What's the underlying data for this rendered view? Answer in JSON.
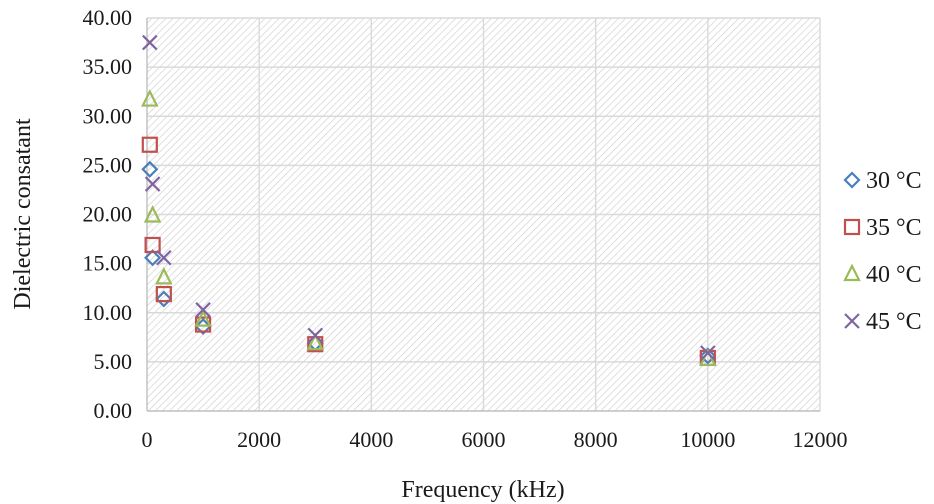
{
  "chart_data": {
    "type": "scatter",
    "xlabel": "Frequency (kHz)",
    "ylabel": "Dielectric consatant",
    "xlim": [
      0,
      12000
    ],
    "ylim": [
      0,
      40
    ],
    "xticks": [
      0,
      2000,
      4000,
      6000,
      8000,
      10000,
      12000
    ],
    "xtick_labels": [
      "0",
      "2000",
      "4000",
      "6000",
      "8000",
      "10000",
      "12000"
    ],
    "yticks": [
      0,
      5,
      10,
      15,
      20,
      25,
      30,
      35,
      40
    ],
    "ytick_labels": [
      "0.00",
      "5.00",
      "10.00",
      "15.00",
      "20.00",
      "25.00",
      "30.00",
      "35.00",
      "40.00"
    ],
    "grid": true,
    "plot_background": "hatched",
    "legend_position": "right",
    "series": [
      {
        "name": "30 °C",
        "marker": "diamond",
        "color": "#4a7ebb",
        "x": [
          50,
          100,
          300,
          1000,
          3000,
          10000
        ],
        "y": [
          24.6,
          15.6,
          11.4,
          8.6,
          6.9,
          5.6
        ]
      },
      {
        "name": "35 °C",
        "marker": "square",
        "color": "#c0504d",
        "x": [
          50,
          100,
          300,
          1000,
          3000,
          10000
        ],
        "y": [
          27.1,
          16.9,
          11.9,
          8.8,
          6.8,
          5.4
        ]
      },
      {
        "name": "40 °C",
        "marker": "triangle",
        "color": "#9bbb59",
        "x": [
          50,
          100,
          300,
          1000,
          3000,
          10000
        ],
        "y": [
          31.7,
          19.9,
          13.6,
          9.3,
          6.9,
          5.3
        ]
      },
      {
        "name": "45 °C",
        "marker": "x",
        "color": "#8064a2",
        "x": [
          50,
          100,
          300,
          1000,
          3000,
          10000
        ],
        "y": [
          37.5,
          23.1,
          15.6,
          10.3,
          7.7,
          5.9
        ]
      }
    ]
  }
}
